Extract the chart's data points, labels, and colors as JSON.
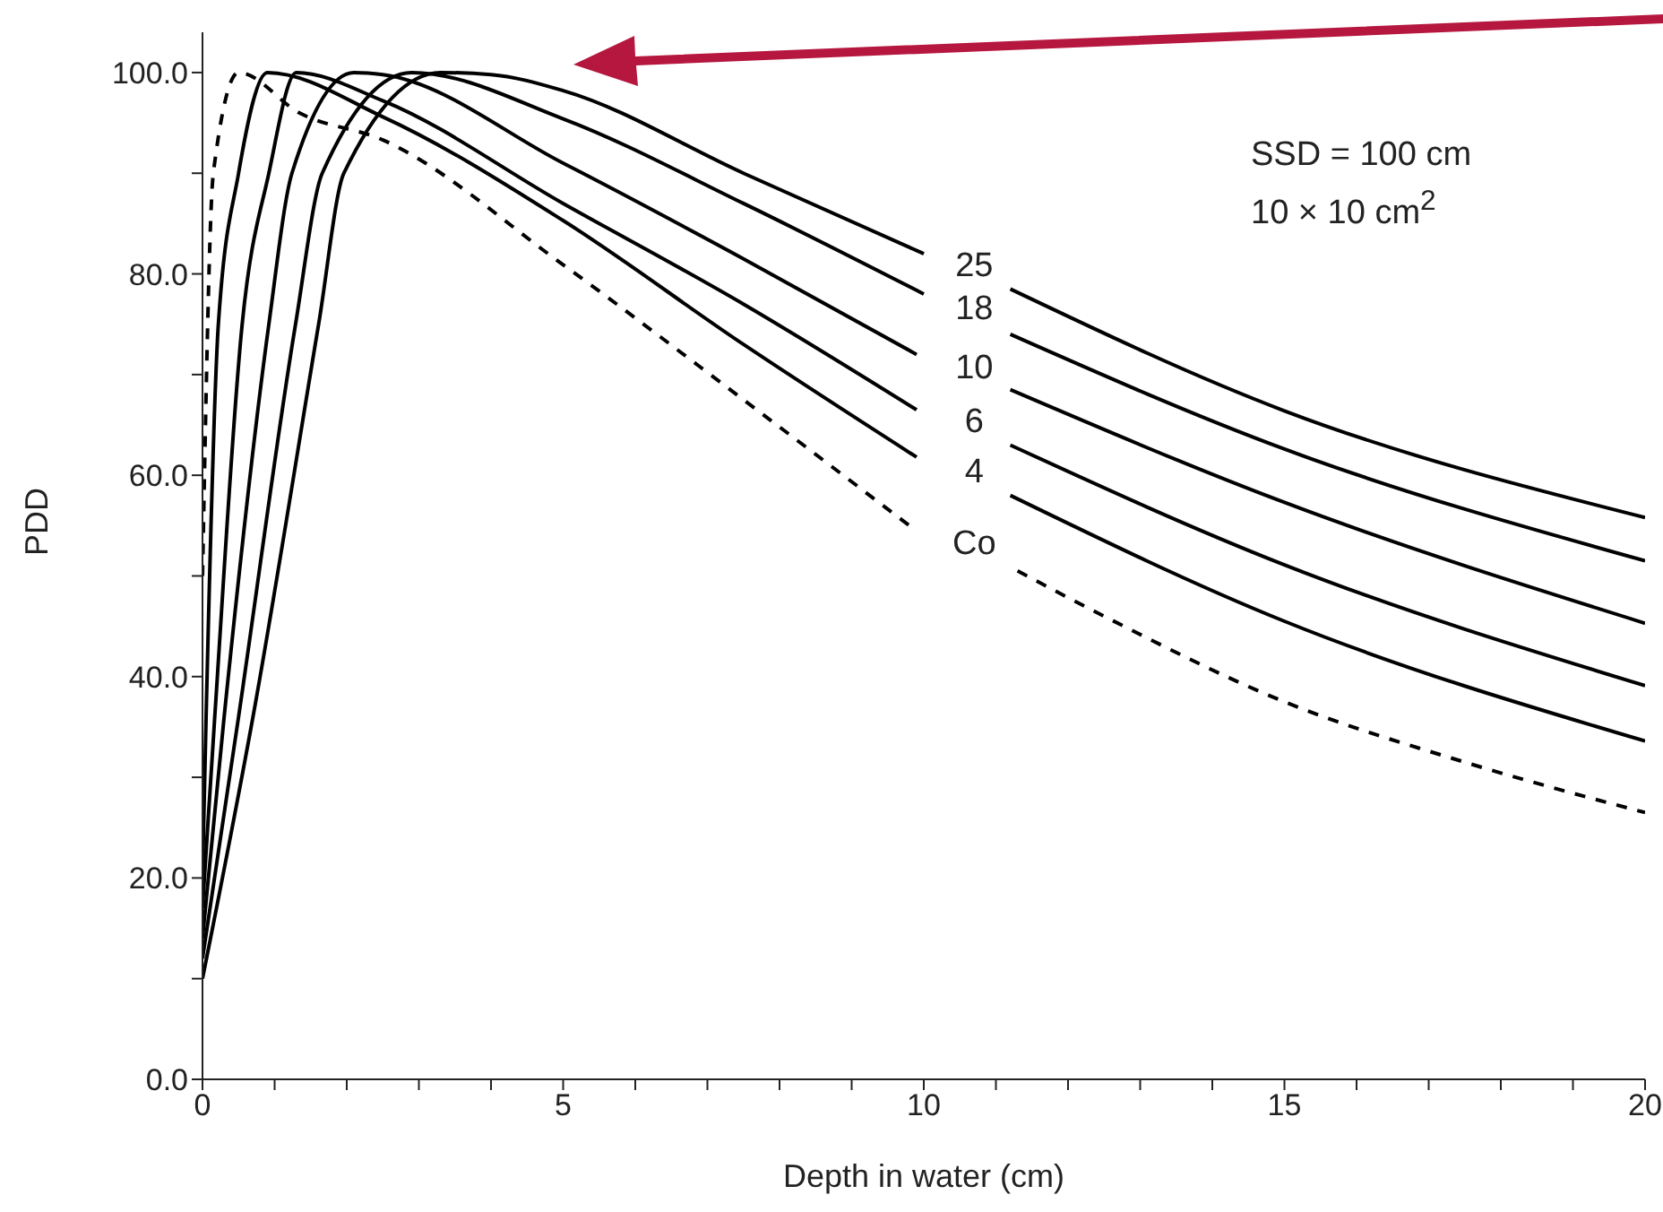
{
  "chart_data": {
    "type": "line",
    "xlabel": "Depth in water (cm)",
    "ylabel": "PDD",
    "xlim": [
      0,
      20
    ],
    "ylim": [
      0,
      104
    ],
    "xticks": [
      0,
      {
        "value": 1,
        "label": null
      },
      {
        "value": 2,
        "label": null
      },
      {
        "value": 3,
        "label": null
      },
      {
        "value": 4,
        "label": null
      },
      5,
      {
        "value": 6,
        "label": null
      },
      {
        "value": 7,
        "label": null
      },
      {
        "value": 8,
        "label": null
      },
      {
        "value": 9,
        "label": null
      },
      10,
      {
        "value": 11,
        "label": null
      },
      {
        "value": 12,
        "label": null
      },
      {
        "value": 13,
        "label": null
      },
      {
        "value": 14,
        "label": null
      },
      15,
      {
        "value": 16,
        "label": null
      },
      {
        "value": 17,
        "label": null
      },
      {
        "value": 18,
        "label": null
      },
      {
        "value": 19,
        "label": null
      },
      20
    ],
    "yticks": [
      {
        "value": 0,
        "label": "0.0"
      },
      {
        "value": 10,
        "label": null
      },
      {
        "value": 20,
        "label": "20.0"
      },
      {
        "value": 30,
        "label": null
      },
      {
        "value": 40,
        "label": "40.0"
      },
      {
        "value": 50,
        "label": null
      },
      {
        "value": 60,
        "label": "60.0"
      },
      {
        "value": 70,
        "label": null
      },
      {
        "value": 80,
        "label": "80.0"
      },
      {
        "value": 90,
        "label": null
      },
      {
        "value": 100,
        "label": "100.0"
      }
    ],
    "grid": false,
    "legend": false,
    "marker": "none",
    "annotations": [
      "SSD = 100 cm",
      "10 × 10 cm$^{2}$"
    ],
    "series": [
      {
        "name": "25",
        "color": "#000000",
        "line_style": "solid",
        "x": [
          0,
          0.7,
          1.61,
          1.96,
          3.3,
          4,
          5,
          7.5,
          10,
          10.7,
          11.2,
          15,
          20
        ],
        "values": [
          10,
          36,
          75,
          90,
          100,
          99.8,
          98.2,
          90,
          82,
          null,
          78.5,
          66.4,
          55.8
        ]
      },
      {
        "name": "18",
        "color": "#000000",
        "line_style": "solid",
        "x": [
          0,
          0.5,
          1.29,
          1.66,
          2.9,
          5,
          7.5,
          10,
          10.7,
          11.2,
          15,
          20
        ],
        "values": [
          12,
          36,
          75,
          90,
          100,
          95.4,
          87,
          78,
          null,
          74,
          62.6,
          51.5
        ]
      },
      {
        "name": "10",
        "color": "#000000",
        "line_style": "solid",
        "x": [
          0,
          0.3,
          0.92,
          1.24,
          2.1,
          2.5,
          5,
          7.5,
          9.9,
          10.7,
          11.2,
          15,
          20
        ],
        "values": [
          14,
          36,
          75,
          90,
          100,
          99.8,
          91,
          81.5,
          72,
          null,
          68.5,
          57.3,
          45.3
        ]
      },
      {
        "name": "6",
        "color": "#000000",
        "line_style": "solid",
        "x": [
          0,
          0.17,
          0.55,
          0.92,
          1.3,
          2.5,
          5,
          7.5,
          9.9,
          10.7,
          11.2,
          15,
          20
        ],
        "values": [
          17,
          36,
          75,
          90,
          100,
          97.2,
          87,
          77,
          66.5,
          null,
          63,
          51.1,
          39.1
        ]
      },
      {
        "name": "4",
        "color": "#000000",
        "line_style": "solid",
        "x": [
          0,
          0.05,
          0.22,
          0.5,
          0.9,
          2.5,
          5,
          7.5,
          9.9,
          10.7,
          11.2,
          15,
          20
        ],
        "values": [
          20,
          36,
          75,
          90,
          100,
          95.6,
          85.3,
          73,
          61.8,
          null,
          58,
          45.5,
          33.6
        ]
      },
      {
        "name": "Co",
        "color": "#000000",
        "line_style": "dashed",
        "x": [
          0,
          0.15,
          0.5,
          1.34,
          2.5,
          5,
          7.5,
          9.8,
          10.7,
          11.3,
          12.5,
          15,
          17.5,
          20
        ],
        "values": [
          50,
          90,
          100,
          96,
          93.3,
          80.9,
          67.5,
          55,
          null,
          50.5,
          46,
          37.5,
          31.5,
          26.5
        ]
      }
    ]
  }
}
